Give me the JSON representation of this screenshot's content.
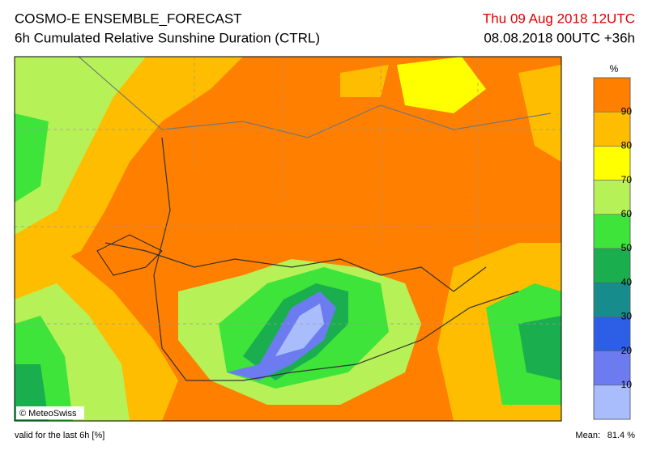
{
  "header": {
    "title": "COSMO-E ENSEMBLE_FORECAST",
    "subtitle": "6h Cumulated Relative Sunshine Duration (CTRL)",
    "valid_time": "Thu 09 Aug 2018 12UTC",
    "run_time": "08.08.2018 00UTC +36h"
  },
  "map": {
    "copyright": "© MeteoSwiss"
  },
  "colorbar": {
    "unit": "%",
    "lim": [
      0,
      100
    ],
    "ticks": [
      10,
      20,
      30,
      40,
      50,
      60,
      70,
      80,
      90
    ],
    "colors": [
      "#a9bdfc",
      "#6c7cf0",
      "#2c5ee6",
      "#178c8c",
      "#1aae4e",
      "#3ee43a",
      "#b6f257",
      "#ffff00",
      "#ffbd00",
      "#ff7f00"
    ]
  },
  "footer": {
    "note": "valid for the last 6h [%]",
    "mean_label": "Mean:",
    "mean_value": "81.4 %"
  }
}
